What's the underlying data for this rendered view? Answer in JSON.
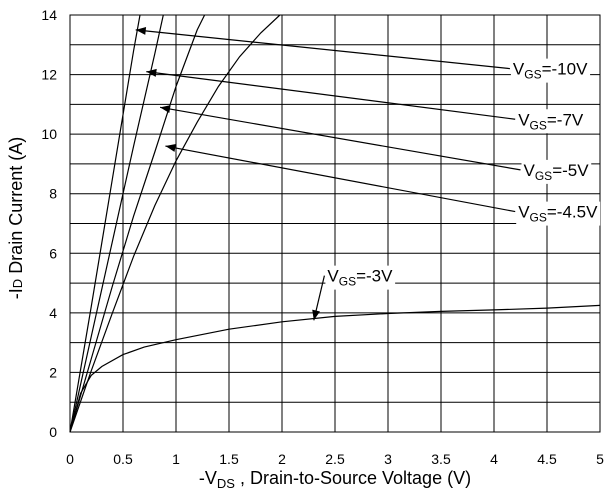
{
  "chart_data": {
    "type": "line",
    "xlabel": "-V",
    "xlabel_sub": "DS",
    "xlabel_rest": " , Drain-to-Source Voltage (V)",
    "ylabel": "-I",
    "ylabel_sub": "D",
    "ylabel_rest": " Drain Current (A)",
    "xlim": [
      0,
      5
    ],
    "ylim": [
      0,
      14
    ],
    "xticks": [
      "0",
      "0.5",
      "1",
      "1.5",
      "2",
      "2.5",
      "3",
      "3.5",
      "4",
      "4.5",
      "5"
    ],
    "xtick_values": [
      0,
      0.5,
      1,
      1.5,
      2,
      2.5,
      3,
      3.5,
      4,
      4.5,
      5
    ],
    "yticks": [
      "0",
      "2",
      "4",
      "6",
      "8",
      "10",
      "12",
      "14"
    ],
    "ytick_values": [
      0,
      2,
      4,
      6,
      8,
      10,
      12,
      14
    ],
    "grid": true,
    "grid_x_step": 0.5,
    "grid_y_step": 1,
    "series": [
      {
        "name": "VGS=-10V",
        "label_main": "V",
        "label_sub": "GS",
        "label_rest": "=-10V",
        "x": [
          0,
          0.2,
          0.4,
          0.6,
          0.66
        ],
        "y": [
          0,
          4.2,
          8.5,
          12.8,
          14
        ]
      },
      {
        "name": "VGS=-7V",
        "label_main": "V",
        "label_sub": "GS",
        "label_rest": "=-7V",
        "x": [
          0,
          0.2,
          0.4,
          0.6,
          0.8,
          0.88
        ],
        "y": [
          0,
          3.2,
          6.4,
          9.6,
          12.7,
          14
        ]
      },
      {
        "name": "VGS=-5V",
        "label_main": "V",
        "label_sub": "GS",
        "label_rest": "=-5V",
        "x": [
          0,
          0.2,
          0.4,
          0.6,
          0.8,
          1.0,
          1.2,
          1.27
        ],
        "y": [
          0,
          2.45,
          4.9,
          7.25,
          9.4,
          11.6,
          13.5,
          14
        ]
      },
      {
        "name": "VGS=-4.5V",
        "label_main": "V",
        "label_sub": "GS",
        "label_rest": "=-4.5V",
        "x": [
          0,
          0.2,
          0.4,
          0.6,
          0.8,
          1.0,
          1.2,
          1.4,
          1.6,
          1.8,
          1.98
        ],
        "y": [
          0,
          2.05,
          4.0,
          5.9,
          7.6,
          9.1,
          10.4,
          11.6,
          12.6,
          13.4,
          14
        ]
      },
      {
        "name": "VGS=-3V",
        "label_main": "V",
        "label_sub": "GS",
        "label_rest": "=-3V",
        "x": [
          0,
          0.1,
          0.2,
          0.3,
          0.5,
          0.7,
          1.0,
          1.5,
          2.0,
          2.5,
          3.0,
          3.5,
          4.0,
          4.5,
          5.0
        ],
        "y": [
          0,
          1.3,
          1.9,
          2.2,
          2.6,
          2.85,
          3.1,
          3.45,
          3.7,
          3.88,
          3.98,
          4.05,
          4.1,
          4.16,
          4.25
        ]
      }
    ],
    "annotations": [
      {
        "series": 0,
        "text_x": 4.15,
        "text_y": 12.2,
        "tip_x": 0.62,
        "tip_y": 13.5
      },
      {
        "series": 1,
        "text_x": 4.2,
        "text_y": 10.5,
        "tip_x": 0.72,
        "tip_y": 12.1
      },
      {
        "series": 2,
        "text_x": 4.25,
        "text_y": 8.8,
        "tip_x": 0.85,
        "tip_y": 10.9
      },
      {
        "series": 3,
        "text_x": 4.2,
        "text_y": 7.4,
        "tip_x": 0.9,
        "tip_y": 9.6
      },
      {
        "series": 4,
        "text_x": 2.4,
        "text_y": 5.25,
        "tip_x": 2.3,
        "tip_y": 3.75
      }
    ]
  }
}
